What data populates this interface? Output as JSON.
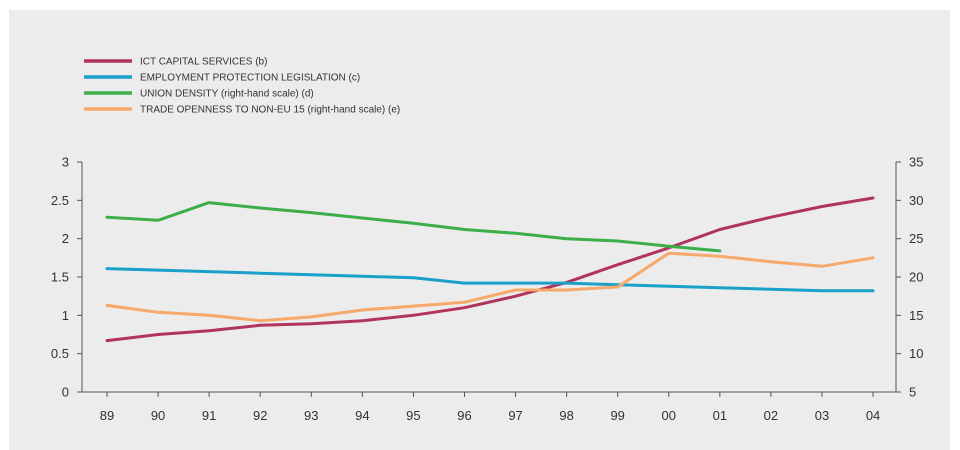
{
  "chart_data": {
    "type": "line",
    "title": "",
    "xlabel": "",
    "ylabel": "",
    "x": [
      "89",
      "90",
      "91",
      "92",
      "93",
      "94",
      "95",
      "96",
      "97",
      "98",
      "99",
      "00",
      "01",
      "02",
      "03",
      "04"
    ],
    "ylim_left": [
      0,
      3
    ],
    "yticks_left": [
      "0",
      "0.5",
      "1",
      "1.5",
      "2",
      "2.5",
      "3"
    ],
    "ylim_right": [
      5,
      35
    ],
    "yticks_right": [
      "5",
      "10",
      "15",
      "20",
      "25",
      "30",
      "35"
    ],
    "grid": false,
    "legend_position": "top-left",
    "series": [
      {
        "name": "ICT CAPITAL SERVICES (b)",
        "axis": "left",
        "color": "#b0345d",
        "values": [
          0.67,
          0.75,
          0.8,
          0.87,
          0.89,
          0.93,
          1.0,
          1.1,
          1.25,
          1.43,
          1.66,
          1.88,
          2.12,
          2.28,
          2.42,
          2.53
        ]
      },
      {
        "name": "EMPLOYMENT PROTECTION LEGISLATION (c)",
        "axis": "left",
        "color": "#1aa0c9",
        "values": [
          1.61,
          1.59,
          1.57,
          1.55,
          1.53,
          1.51,
          1.49,
          1.42,
          1.42,
          1.42,
          1.4,
          1.38,
          1.36,
          1.34,
          1.32,
          1.32
        ]
      },
      {
        "name": "UNION DENSITY (right-hand scale) (d)",
        "axis": "right",
        "color": "#3dae4a",
        "values": [
          27.8,
          27.4,
          29.7,
          29.0,
          28.4,
          27.7,
          27.0,
          26.2,
          25.7,
          25.0,
          24.7,
          24.0,
          23.4,
          null,
          null,
          null
        ]
      },
      {
        "name": "TRADE OPENNESS TO NON-EU 15 (right-hand scale) (e)",
        "axis": "right",
        "color": "#f6a96a",
        "values": [
          16.3,
          15.4,
          15.0,
          14.3,
          14.8,
          15.7,
          16.2,
          16.7,
          18.3,
          18.3,
          18.7,
          23.1,
          22.7,
          22.0,
          21.4,
          22.5
        ]
      }
    ]
  }
}
